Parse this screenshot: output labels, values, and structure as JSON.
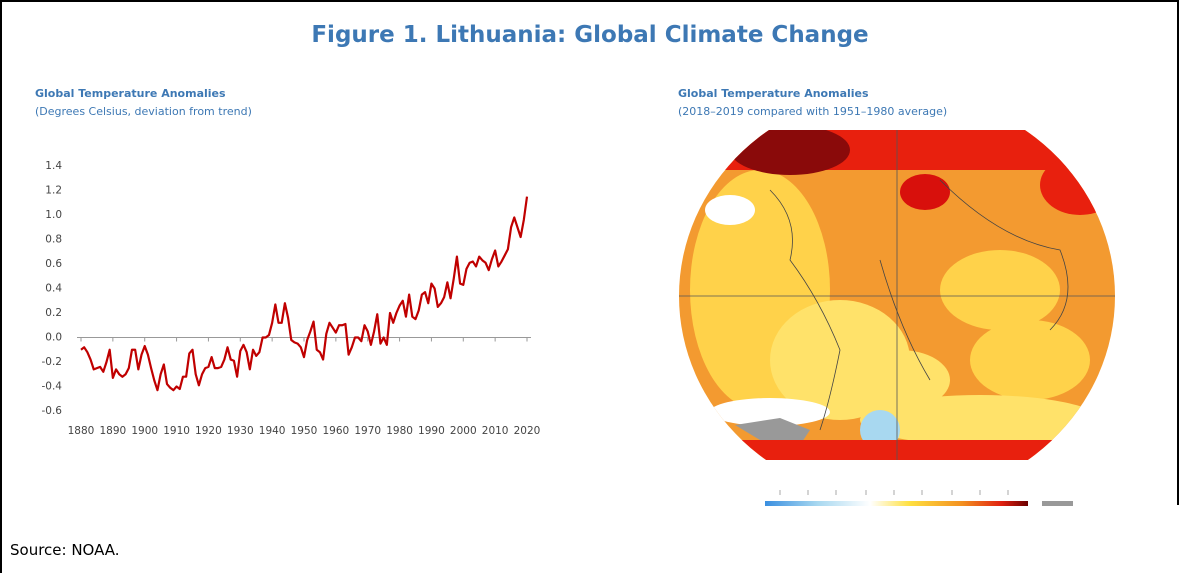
{
  "title": "Figure 1. Lithuania: Global Climate Change",
  "source": "Source: NOAA.",
  "chart_data": {
    "type": "line",
    "title": "Global Temperature Anomalies",
    "subtitle": "(Degrees Celsius, deviation from trend)",
    "x": [
      1880,
      1881,
      1882,
      1883,
      1884,
      1885,
      1886,
      1887,
      1888,
      1889,
      1890,
      1891,
      1892,
      1893,
      1894,
      1895,
      1896,
      1897,
      1898,
      1899,
      1900,
      1901,
      1902,
      1903,
      1904,
      1905,
      1906,
      1907,
      1908,
      1909,
      1910,
      1911,
      1912,
      1913,
      1914,
      1915,
      1916,
      1917,
      1918,
      1919,
      1920,
      1921,
      1922,
      1923,
      1924,
      1925,
      1926,
      1927,
      1928,
      1929,
      1930,
      1931,
      1932,
      1933,
      1934,
      1935,
      1936,
      1937,
      1938,
      1939,
      1940,
      1941,
      1942,
      1943,
      1944,
      1945,
      1946,
      1947,
      1948,
      1949,
      1950,
      1951,
      1952,
      1953,
      1954,
      1955,
      1956,
      1957,
      1958,
      1959,
      1960,
      1961,
      1962,
      1963,
      1964,
      1965,
      1966,
      1967,
      1968,
      1969,
      1970,
      1971,
      1972,
      1973,
      1974,
      1975,
      1976,
      1977,
      1978,
      1979,
      1980,
      1981,
      1982,
      1983,
      1984,
      1985,
      1986,
      1987,
      1988,
      1989,
      1990,
      1991,
      1992,
      1993,
      1994,
      1995,
      1996,
      1997,
      1998,
      1999,
      2000,
      2001,
      2002,
      2003,
      2004,
      2005,
      2006,
      2007,
      2008,
      2009,
      2010,
      2011,
      2012,
      2013,
      2014,
      2015,
      2016,
      2017,
      2018,
      2019,
      2020
    ],
    "values": [
      -0.1,
      -0.08,
      -0.12,
      -0.18,
      -0.26,
      -0.25,
      -0.24,
      -0.28,
      -0.2,
      -0.1,
      -0.33,
      -0.26,
      -0.3,
      -0.32,
      -0.3,
      -0.25,
      -0.1,
      -0.1,
      -0.26,
      -0.14,
      -0.07,
      -0.14,
      -0.25,
      -0.35,
      -0.43,
      -0.3,
      -0.22,
      -0.38,
      -0.41,
      -0.43,
      -0.4,
      -0.42,
      -0.32,
      -0.32,
      -0.13,
      -0.1,
      -0.3,
      -0.39,
      -0.3,
      -0.25,
      -0.24,
      -0.16,
      -0.25,
      -0.25,
      -0.24,
      -0.18,
      -0.08,
      -0.18,
      -0.19,
      -0.32,
      -0.11,
      -0.06,
      -0.12,
      -0.26,
      -0.1,
      -0.15,
      -0.12,
      0.0,
      0.0,
      0.02,
      0.12,
      0.27,
      0.12,
      0.12,
      0.28,
      0.16,
      -0.02,
      -0.04,
      -0.05,
      -0.08,
      -0.16,
      -0.02,
      0.05,
      0.13,
      -0.1,
      -0.12,
      -0.18,
      0.03,
      0.12,
      0.08,
      0.04,
      0.1,
      0.1,
      0.11,
      -0.14,
      -0.08,
      0.0,
      0.0,
      -0.03,
      0.1,
      0.05,
      -0.06,
      0.05,
      0.19,
      -0.05,
      0.0,
      -0.06,
      0.2,
      0.12,
      0.2,
      0.26,
      0.3,
      0.17,
      0.35,
      0.17,
      0.15,
      0.22,
      0.35,
      0.37,
      0.28,
      0.44,
      0.4,
      0.25,
      0.28,
      0.33,
      0.45,
      0.32,
      0.48,
      0.66,
      0.44,
      0.43,
      0.56,
      0.61,
      0.62,
      0.58,
      0.66,
      0.63,
      0.61,
      0.55,
      0.64,
      0.71,
      0.58,
      0.62,
      0.67,
      0.72,
      0.9,
      0.98,
      0.9,
      0.82,
      0.96,
      1.15
    ],
    "color": "#c00000",
    "xlim": [
      1880,
      2020
    ],
    "xticks": [
      1880,
      1890,
      1900,
      1910,
      1920,
      1930,
      1940,
      1950,
      1960,
      1970,
      1980,
      1990,
      2000,
      2010,
      2020
    ],
    "ylim": [
      -0.6,
      1.4
    ],
    "yticks": [
      1.4,
      1.2,
      {
        "value": 1,
        "label": "1.0"
      },
      0.8,
      0.6,
      0.4,
      0.2,
      {
        "value": 0,
        "label": "0.0"
      },
      -0.2,
      -0.4,
      -0.6
    ]
  },
  "map": {
    "title": "Global Temperature Anomalies",
    "subtitle": "(2018–2019 compared with 1951–1980 average)"
  }
}
